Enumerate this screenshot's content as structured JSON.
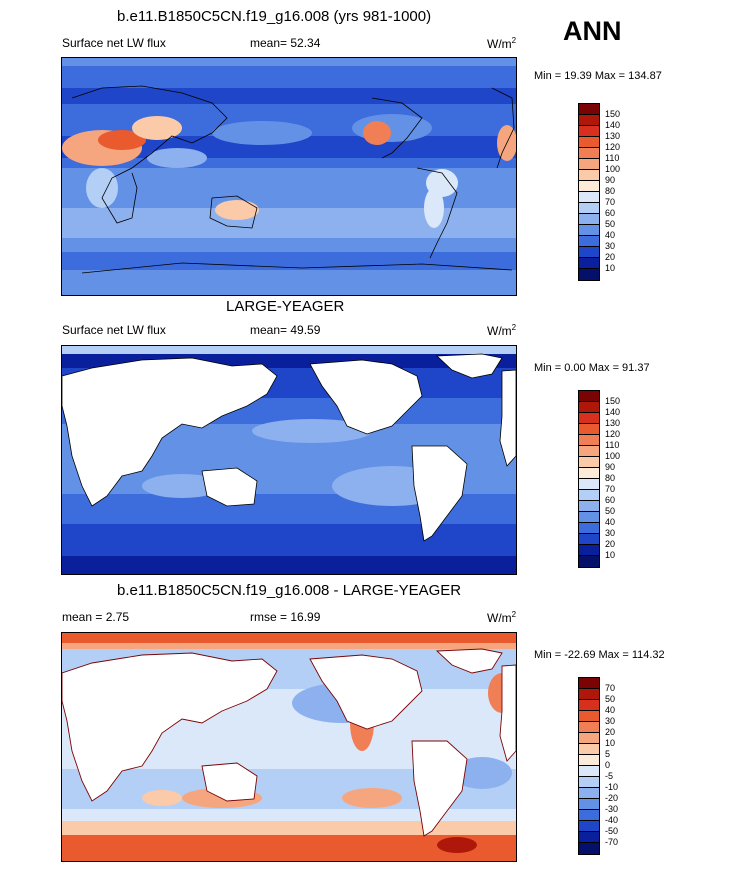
{
  "season": "ANN",
  "panels": [
    {
      "title": "b.e11.B1850C5CN.f19_g16.008 (yrs 981-1000)",
      "left": "Surface net LW flux",
      "center": "mean=  52.34",
      "units": "W/m",
      "units_sup": "2",
      "minmax": "Min =  19.39 Max = 134.87",
      "scale": "abs",
      "ticks": [
        "150",
        "140",
        "130",
        "120",
        "110",
        "100",
        "90",
        "80",
        "70",
        "60",
        "50",
        "40",
        "30",
        "20",
        "10"
      ]
    },
    {
      "title": "LARGE-YEAGER",
      "left": "Surface net LW flux",
      "center": "mean=  49.59",
      "units": "W/m",
      "units_sup": "2",
      "minmax": "Min =   0.00 Max =  91.37",
      "scale": "abs",
      "ticks": [
        "150",
        "140",
        "130",
        "120",
        "110",
        "100",
        "90",
        "80",
        "70",
        "60",
        "50",
        "40",
        "30",
        "20",
        "10"
      ]
    },
    {
      "title": "b.e11.B1850C5CN.f19_g16.008 - LARGE-YEAGER",
      "left": "mean =   2.75",
      "center": "rmse =  16.99",
      "units": "W/m",
      "units_sup": "2",
      "minmax": "Min = -22.69 Max = 114.32",
      "scale": "diff",
      "ticks": [
        "70",
        "50",
        "40",
        "30",
        "20",
        "10",
        "5",
        "0",
        "-5",
        "-10",
        "-20",
        "-30",
        "-40",
        "-50",
        "-70"
      ]
    }
  ],
  "colors": {
    "abs": [
      "#7a0403",
      "#b0170b",
      "#d7301f",
      "#ea5a2f",
      "#f07f55",
      "#f6a67f",
      "#fbcaa9",
      "#fdebd9",
      "#dbe8fa",
      "#b4cff5",
      "#8cb1ee",
      "#6391e6",
      "#3d6ddd",
      "#1f45c8",
      "#0a1f9c",
      "#04106a"
    ],
    "diff": [
      "#7a0403",
      "#b0170b",
      "#d7301f",
      "#ea5a2f",
      "#f07f55",
      "#f6a67f",
      "#fbcaa9",
      "#fdebd9",
      "#dbe8fa",
      "#b4cff5",
      "#8cb1ee",
      "#6391e6",
      "#3d6ddd",
      "#1f45c8",
      "#0a1f9c",
      "#04106a"
    ],
    "land_missing": "#ffffff",
    "coast": "#000000"
  }
}
